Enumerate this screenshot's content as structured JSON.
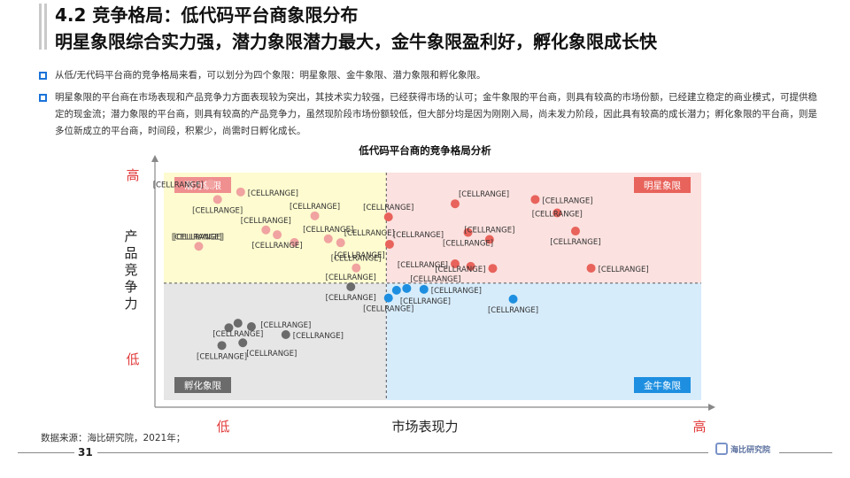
{
  "header": {
    "title_line1": "4.2 竞争格局：低代码平台商象限分布",
    "title_line2": "明星象限综合实力强，潜力象限潜力最大，金牛象限盈利好，孵化象限成长快"
  },
  "bullets": [
    "从低/无代码平台商的竞争格局来看，可以划分为四个象限：明星象限、金牛象限、潜力象限和孵化象限。",
    "明星象限的平台商在市场表现和产品竞争力方面表现较为突出，其技术实力较强，已经获得市场的认可；金牛象限的平台商，则具有较高的市场份额，已经建立稳定的商业模式，可提供稳定的现金流；潜力象限的平台商，则具有较高的产品竞争力，虽然现阶段市场份额较低，但大部分均是因为刚刚入局，尚未发力阶段，因此具有较高的成长潜力；孵化象限的平台商，则是多位新成立的平台商，时间段，积累少，尚需时日孵化成长。"
  ],
  "footer": {
    "source": "数据来源：海比研究院，2021年；",
    "page_number": "31",
    "logo_text": "海比研究院"
  },
  "colors": {
    "star_point": "#e8635b",
    "potential_point": "#f0a3a0",
    "cash_point": "#1e8fe0",
    "incubate_point": "#6b6b6b",
    "star_bg": "#fbe1df",
    "potential_bg": "#fdfbcf",
    "cash_bg": "#d7ecfb",
    "incubate_bg": "#e6e6e6",
    "star_label_bg": "#e8635b",
    "potential_label_bg": "#ef8f8f",
    "cash_label_bg": "#1e8fe0",
    "incubate_label_bg": "#6b6b6b",
    "axis": "#888888",
    "axis_text_red": "#e23b3b"
  },
  "chart_data": {
    "type": "scatter",
    "title": "低代码平台商的竞争格局分析",
    "xlabel": "市场表现力",
    "ylabel": "产品竞争力",
    "x_low_label": "低",
    "x_high_label": "高",
    "y_high_label": "高",
    "y_low_label": "低",
    "xlim": [
      0,
      1
    ],
    "ylim": [
      0,
      1
    ],
    "divider_x": 0.414,
    "divider_y": 0.514,
    "quadrants": [
      {
        "name": "潜力象限",
        "position": "top-left",
        "color_key": "potential"
      },
      {
        "name": "明星象限",
        "position": "top-right",
        "color_key": "star"
      },
      {
        "name": "孵化象限",
        "position": "bottom-left",
        "color_key": "incubate"
      },
      {
        "name": "金牛象限",
        "position": "bottom-right",
        "color_key": "cash"
      }
    ],
    "point_label": "[CELLRANGE]",
    "series": [
      {
        "group": "potential",
        "points": [
          {
            "x": 0.087,
            "y": 0.951
          },
          {
            "x": 0.143,
            "y": 0.915
          },
          {
            "x": 0.1,
            "y": 0.882
          },
          {
            "x": 0.281,
            "y": 0.81
          },
          {
            "x": 0.19,
            "y": 0.748
          },
          {
            "x": 0.211,
            "y": 0.727
          },
          {
            "x": 0.243,
            "y": 0.693
          },
          {
            "x": 0.306,
            "y": 0.709
          },
          {
            "x": 0.329,
            "y": 0.692
          },
          {
            "x": 0.065,
            "y": 0.676
          },
          {
            "x": 0.358,
            "y": 0.581
          }
        ]
      },
      {
        "group": "star",
        "points": [
          {
            "x": 0.542,
            "y": 0.863
          },
          {
            "x": 0.691,
            "y": 0.882
          },
          {
            "x": 0.418,
            "y": 0.805
          },
          {
            "x": 0.732,
            "y": 0.823
          },
          {
            "x": 0.566,
            "y": 0.737
          },
          {
            "x": 0.606,
            "y": 0.706
          },
          {
            "x": 0.766,
            "y": 0.743
          },
          {
            "x": 0.42,
            "y": 0.685
          },
          {
            "x": 0.542,
            "y": 0.599
          },
          {
            "x": 0.571,
            "y": 0.588
          },
          {
            "x": 0.612,
            "y": 0.579
          },
          {
            "x": 0.795,
            "y": 0.58
          }
        ]
      },
      {
        "group": "cash",
        "points": [
          {
            "x": 0.433,
            "y": 0.483
          },
          {
            "x": 0.452,
            "y": 0.491
          },
          {
            "x": 0.484,
            "y": 0.487
          },
          {
            "x": 0.418,
            "y": 0.449
          },
          {
            "x": 0.65,
            "y": 0.444
          }
        ]
      },
      {
        "group": "incubate",
        "points": [
          {
            "x": 0.348,
            "y": 0.498
          },
          {
            "x": 0.138,
            "y": 0.338
          },
          {
            "x": 0.163,
            "y": 0.323
          },
          {
            "x": 0.121,
            "y": 0.318
          },
          {
            "x": 0.227,
            "y": 0.288
          },
          {
            "x": 0.147,
            "y": 0.252
          },
          {
            "x": 0.108,
            "y": 0.24
          }
        ]
      }
    ],
    "labeled_points": [
      {
        "group": "potential",
        "x": 0.087,
        "y": 0.951,
        "anchor": "left"
      },
      {
        "group": "potential",
        "x": 0.143,
        "y": 0.915,
        "anchor": "right"
      },
      {
        "group": "potential",
        "x": 0.1,
        "y": 0.882,
        "anchor": "center-below"
      },
      {
        "group": "potential",
        "x": 0.281,
        "y": 0.81,
        "anchor": "center-above"
      },
      {
        "group": "potential",
        "x": 0.19,
        "y": 0.748,
        "anchor": "center-above"
      },
      {
        "group": "potential",
        "x": 0.065,
        "y": 0.676,
        "anchor": "left-above"
      },
      {
        "group": "potential",
        "x": 0.211,
        "y": 0.727,
        "anchor": "center-below"
      },
      {
        "group": "potential",
        "x": 0.306,
        "y": 0.709,
        "anchor": "center-above"
      },
      {
        "group": "potential",
        "x": 0.329,
        "y": 0.692,
        "anchor": "right-above"
      },
      {
        "group": "potential",
        "x": 0.358,
        "y": 0.581,
        "anchor": "center-above"
      },
      {
        "group": "potential",
        "x": 0.065,
        "y": 0.676,
        "anchor": "center-above"
      },
      {
        "group": "star",
        "x": 0.542,
        "y": 0.863,
        "anchor": "right-above"
      },
      {
        "group": "star",
        "x": 0.691,
        "y": 0.882,
        "anchor": "right"
      },
      {
        "group": "star",
        "x": 0.418,
        "y": 0.805,
        "anchor": "center-above"
      },
      {
        "group": "star",
        "x": 0.732,
        "y": 0.823,
        "anchor": "center"
      },
      {
        "group": "star",
        "x": 0.606,
        "y": 0.706,
        "anchor": "center-above"
      },
      {
        "group": "star",
        "x": 0.766,
        "y": 0.743,
        "anchor": "center-below"
      },
      {
        "group": "star",
        "x": 0.42,
        "y": 0.685,
        "anchor": "right-above"
      },
      {
        "group": "star",
        "x": 0.566,
        "y": 0.737,
        "anchor": "center-below"
      },
      {
        "group": "star",
        "x": 0.542,
        "y": 0.599,
        "anchor": "left"
      },
      {
        "group": "star",
        "x": 0.612,
        "y": 0.579,
        "anchor": "left"
      },
      {
        "group": "star",
        "x": 0.795,
        "y": 0.58,
        "anchor": "right"
      },
      {
        "group": "star",
        "x": 0.418,
        "y": 0.685,
        "anchor": "left-below"
      },
      {
        "group": "incubate",
        "x": 0.348,
        "y": 0.498,
        "anchor": "center-above"
      },
      {
        "group": "incubate",
        "x": 0.348,
        "y": 0.498,
        "anchor": "center-below"
      },
      {
        "group": "cash",
        "x": 0.452,
        "y": 0.491,
        "anchor": "right-above"
      },
      {
        "group": "cash",
        "x": 0.433,
        "y": 0.483,
        "anchor": "right-below"
      },
      {
        "group": "cash",
        "x": 0.484,
        "y": 0.487,
        "anchor": "right"
      },
      {
        "group": "cash",
        "x": 0.418,
        "y": 0.449,
        "anchor": "center-below"
      },
      {
        "group": "cash",
        "x": 0.65,
        "y": 0.444,
        "anchor": "center-below"
      },
      {
        "group": "incubate",
        "x": 0.227,
        "y": 0.288,
        "anchor": "center-above"
      },
      {
        "group": "incubate",
        "x": 0.138,
        "y": 0.338,
        "anchor": "center-below"
      },
      {
        "group": "incubate",
        "x": 0.227,
        "y": 0.288,
        "anchor": "right"
      },
      {
        "group": "incubate",
        "x": 0.108,
        "y": 0.24,
        "anchor": "center-below"
      },
      {
        "group": "incubate",
        "x": 0.147,
        "y": 0.252,
        "anchor": "right-below"
      }
    ]
  }
}
